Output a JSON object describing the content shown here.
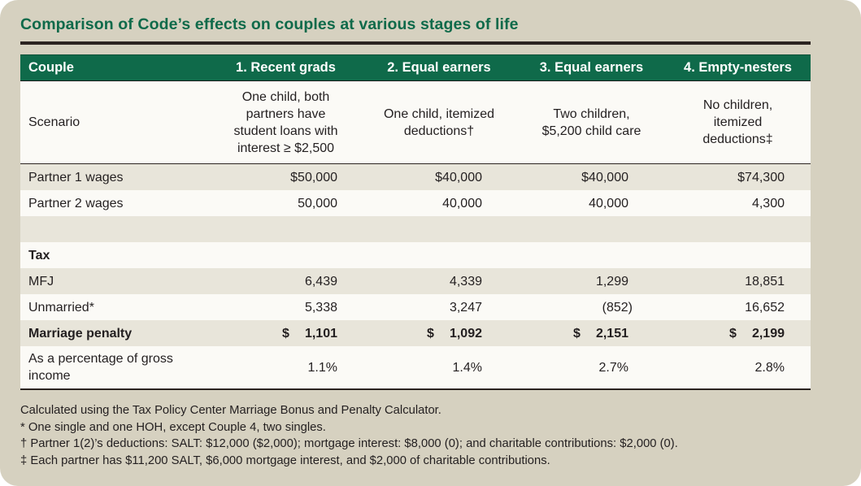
{
  "title": "Comparison of Code’s effects on couples at various stages of life",
  "colors": {
    "panel_bg": "#d6d1c0",
    "accent_green": "#0f6a4a",
    "row_shade": "#e8e5da",
    "row_light": "#fbfaf6",
    "rule": "#2b2320"
  },
  "table": {
    "headers": [
      "Couple",
      "1. Recent grads",
      "2. Equal earners",
      "3. Equal earners",
      "4. Empty-nesters"
    ],
    "scenario": {
      "label": "Scenario",
      "values": [
        [
          "One child, both",
          "partners have",
          "student loans with",
          "interest ≥ $2,500"
        ],
        [
          "One child, itemized",
          "deductions†"
        ],
        [
          "Two children,",
          "$5,200 child care"
        ],
        [
          "No children,",
          "itemized",
          "deductions‡"
        ]
      ]
    },
    "partner1_wages": {
      "label": "Partner 1 wages",
      "values": [
        "$50,000",
        "$40,000",
        "$40,000",
        "$74,300"
      ]
    },
    "partner2_wages": {
      "label": "Partner 2 wages",
      "values": [
        "50,000",
        "40,000",
        "40,000",
        "4,300"
      ]
    },
    "tax_section_label": "Tax",
    "mfj": {
      "label": "MFJ",
      "values": [
        "6,439",
        "4,339",
        "1,299",
        "18,851"
      ]
    },
    "unmarried": {
      "label": "Unmarried*",
      "values": [
        "5,338",
        "3,247",
        "(852)",
        "16,652"
      ]
    },
    "marriage_penalty": {
      "label": "Marriage penalty",
      "currency": "$",
      "values": [
        "1,101",
        "1,092",
        "2,151",
        "2,199"
      ]
    },
    "percentage": {
      "label_line1": "As a percentage of gross",
      "label_line2": "income",
      "values": [
        "1.1%",
        "1.4%",
        "2.7%",
        "2.8%"
      ]
    }
  },
  "footnotes": [
    "Calculated using the Tax Policy Center Marriage Bonus and Penalty Calculator.",
    "* One single and one HOH, except Couple 4, two singles.",
    "† Partner 1(2)’s deductions: SALT: $12,000 ($2,000); mortgage interest: $8,000 (0); and charitable contributions: $2,000 (0).",
    "‡ Each partner has $11,200 SALT, $6,000 mortgage interest, and $2,000 of charitable contributions."
  ]
}
